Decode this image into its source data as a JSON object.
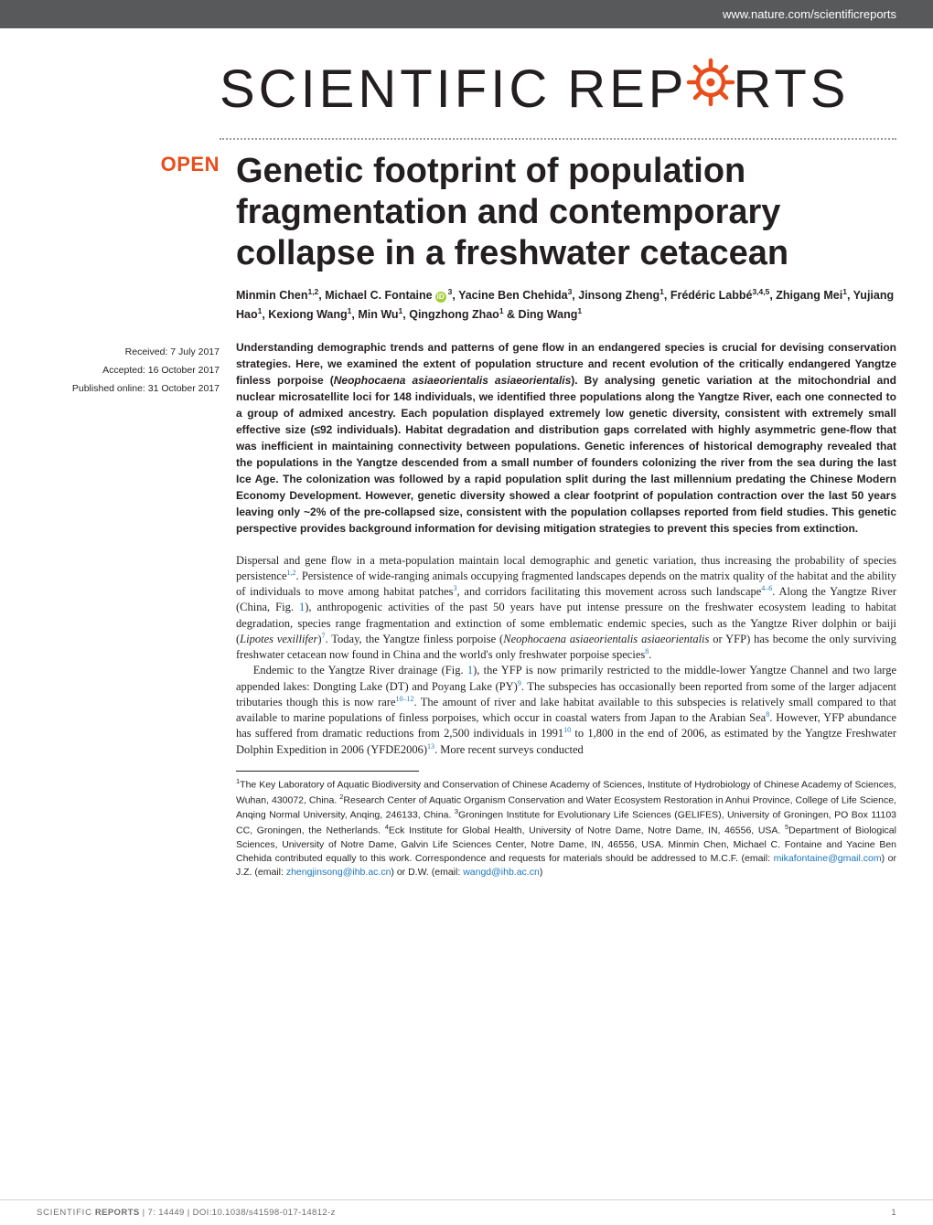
{
  "header": {
    "url": "www.nature.com/scientificreports"
  },
  "logo": {
    "part1": "SCIENTIFIC",
    "part2": "REP",
    "part3": "RTS",
    "gear_color": "#e84e1b"
  },
  "sidebar": {
    "open_label": "OPEN",
    "open_color": "#e84e1b",
    "received": "Received: 7 July 2017",
    "accepted": "Accepted: 16 October 2017",
    "published": "Published online: 31 October 2017"
  },
  "article": {
    "title": "Genetic footprint of population fragmentation and contemporary collapse in a freshwater cetacean",
    "authors_html": "Minmin Chen<sup>1,2</sup>, Michael C. Fontaine<span class=\"orcid\">iD</span><sup>3</sup>, Yacine Ben Chehida<sup>3</sup>, Jinsong Zheng<sup>1</sup>, Frédéric Labbé<sup>3,4,5</sup>, Zhigang Mei<sup>1</sup>, Yujiang Hao<sup>1</sup>, Kexiong Wang<sup>1</sup>, Min Wu<sup>1</sup>, Qingzhong Zhao<sup>1</sup> & Ding Wang<sup>1</sup>",
    "abstract": "Understanding demographic trends and patterns of gene flow in an endangered species is crucial for devising conservation strategies. Here, we examined the extent of population structure and recent evolution of the critically endangered Yangtze finless porpoise (<em>Neophocaena asiaeorientalis asiaeorientalis</em>). By analysing genetic variation at the mitochondrial and nuclear microsatellite loci for 148 individuals, we identified three populations along the Yangtze River, each one connected to a group of admixed ancestry. Each population displayed extremely low genetic diversity, consistent with extremely small effective size (≤92 individuals). Habitat degradation and distribution gaps correlated with highly asymmetric gene-flow that was inefficient in maintaining connectivity between populations. Genetic inferences of historical demography revealed that the populations in the Yangtze descended from a small number of founders colonizing the river from the sea during the last Ice Age. The colonization was followed by a rapid population split during the last millennium predating the Chinese Modern Economy Development. However, genetic diversity showed a clear footprint of population contraction over the last 50 years leaving only ~2% of the pre-collapsed size, consistent with the population collapses reported from field studies. This genetic perspective provides background information for devising mitigation strategies to prevent this species from extinction.",
    "paragraphs": [
      "Dispersal and gene flow in a meta-population maintain local demographic and genetic variation, thus increasing the probability of species persistence<sup class=\"ref\">1,2</sup>. Persistence of wide-ranging animals occupying fragmented landscapes depends on the matrix quality of the habitat and the ability of individuals to move among habitat patches<sup class=\"ref\">3</sup>, and corridors facilitating this movement across such landscape<sup class=\"ref-range\">4–6</sup>. Along the Yangtze River (China, Fig. <span class=\"ref\">1</span>), anthropogenic activities of the past 50 years have put intense pressure on the freshwater ecosystem leading to habitat degradation, species range fragmentation and extinction of some emblematic endemic species, such as the Yangtze River dolphin or baiji (<em>Lipotes vexillifer</em>)<sup class=\"ref\">7</sup>. Today, the Yangtze finless porpoise (<em>Neophocaena asiaeorientalis asiaeorientalis</em> or YFP) has become the only surviving freshwater cetacean now found in China and the world's only freshwater porpoise species<sup class=\"ref\">8</sup>.",
      "Endemic to the Yangtze River drainage (Fig. <span class=\"ref\">1</span>), the YFP is now primarily restricted to the middle-lower Yangtze Channel and two large appended lakes: Dongting Lake (DT) and Poyang Lake (PY)<sup class=\"ref\">9</sup>. The subspecies has occasionally been reported from some of the larger adjacent tributaries though this is now rare<sup class=\"ref-range\">10–12</sup>. The amount of river and lake habitat available to this subspecies is relatively small compared to that available to marine populations of finless porpoises, which occur in coastal waters from Japan to the Arabian Sea<sup class=\"ref\">8</sup>. However, YFP abundance has suffered from dramatic reductions from 2,500 individuals in 1991<sup class=\"ref\">10</sup> to 1,800 in the end of 2006, as estimated by the Yangtze Freshwater Dolphin Expedition in 2006 (YFDE2006)<sup class=\"ref\">13</sup>. More recent surveys conducted"
    ],
    "affiliations_html": "<sup>1</sup>The Key Laboratory of Aquatic Biodiversity and Conservation of Chinese Academy of Sciences, Institute of Hydrobiology of Chinese Academy of Sciences, Wuhan, 430072, China. <sup>2</sup>Research Center of Aquatic Organism Conservation and Water Ecosystem Restoration in Anhui Province, College of Life Science, Anqing Normal University, Anqing, 246133, China. <sup>3</sup>Groningen Institute for Evolutionary Life Sciences (GELIFES), University of Groningen, PO Box 11103 CC, Groningen, the Netherlands. <sup>4</sup>Eck Institute for Global Health, University of Notre Dame, Notre Dame, IN, 46556, USA. <sup>5</sup>Department of Biological Sciences, University of Notre Dame, Galvin Life Sciences Center, Notre Dame, IN, 46556, USA. Minmin Chen, Michael C. Fontaine and Yacine Ben Chehida contributed equally to this work. Correspondence and requests for materials should be addressed to M.C.F. (email: <span class=\"ref\">mikafontaine@gmail.com</span>) or J.Z. (email: <span class=\"ref\">zhengjinsong@ihb.ac.cn</span>) or D.W. (email: <span class=\"ref\">wangd@ihb.ac.cn</span>)"
  },
  "footer": {
    "journal": "SCIENTIFIC",
    "reports": "REPORTS",
    "citation": " | 7: 14449  | DOI:10.1038/s41598-017-14812-z",
    "page": "1"
  },
  "colors": {
    "link": "#1b75bb",
    "accent": "#e84e1b",
    "header_bg": "#58595b",
    "text": "#231f20"
  }
}
